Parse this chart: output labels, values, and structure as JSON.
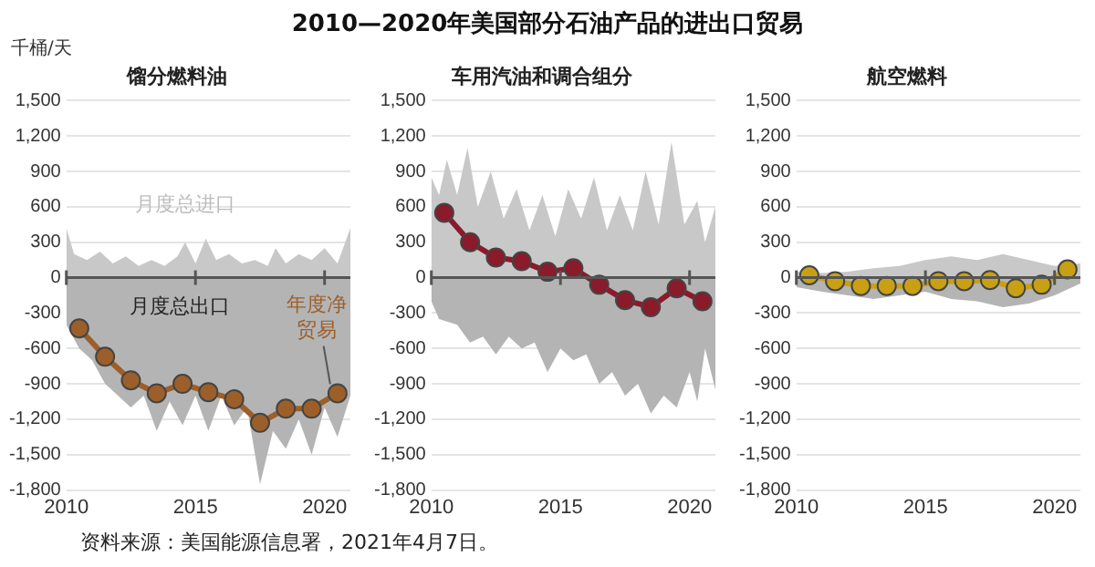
{
  "chart_data": [
    {
      "type": "other",
      "title": "2010—2020年美国部分石油产品的进出口贸易",
      "annotations": [
        "资料来源：美国能源信息署，2021年4月7日。"
      ]
    },
    {
      "type": "area",
      "title": "馏分燃料油",
      "ylabel": "千桶/天",
      "xlim": [
        2010,
        2021
      ],
      "xticks": [
        2010,
        2015,
        2020
      ],
      "ylim": [
        -1800,
        1500
      ],
      "yticks": [
        {
          "value": -1800,
          "label": "-1,800"
        },
        {
          "value": -1500,
          "label": "-1,500"
        },
        {
          "value": -1200,
          "label": "-1,200"
        },
        -900,
        -600,
        -300,
        0,
        300,
        600,
        900,
        {
          "value": 1200,
          "label": "1,200"
        },
        {
          "value": 1500,
          "label": "1,500"
        }
      ],
      "grid": "y",
      "legend": false,
      "ref_lines": [
        {
          "axis": "y",
          "value": 0,
          "color": "#555555"
        }
      ],
      "series": [
        {
          "name": "月度总进口",
          "color": "#c8c8c8",
          "x": [
            2010,
            2010.3,
            2010.8,
            2011.3,
            2011.8,
            2012.3,
            2012.8,
            2013.3,
            2013.8,
            2014.3,
            2014.6,
            2015,
            2015.4,
            2015.8,
            2016.3,
            2016.8,
            2017.3,
            2017.8,
            2018.1,
            2018.5,
            2019,
            2019.5,
            2020,
            2020.5,
            2021
          ],
          "values": [
            420,
            200,
            150,
            220,
            120,
            180,
            100,
            150,
            100,
            180,
            300,
            120,
            330,
            150,
            200,
            120,
            150,
            100,
            250,
            120,
            200,
            150,
            250,
            120,
            420
          ]
        },
        {
          "name": "月度总出口",
          "color": "#b4b4b4",
          "x": [
            2010,
            2010.5,
            2011,
            2011.5,
            2012,
            2012.5,
            2013,
            2013.5,
            2014,
            2014.5,
            2015,
            2015.5,
            2016,
            2016.5,
            2017,
            2017.5,
            2018,
            2018.5,
            2019,
            2019.5,
            2020,
            2020.5,
            2021
          ],
          "values": [
            -400,
            -600,
            -700,
            -900,
            -1000,
            -1100,
            -1000,
            -1300,
            -1050,
            -1250,
            -1000,
            -1300,
            -1000,
            -1250,
            -1100,
            -1750,
            -1300,
            -1450,
            -1200,
            -1500,
            -1100,
            -1350,
            -1000
          ]
        },
        {
          "name": "年度净贸易",
          "type": "line",
          "marker": "circle",
          "color": "#9c5f2a",
          "x": [
            2010.5,
            2011.5,
            2012.5,
            2013.5,
            2014.5,
            2015.5,
            2016.5,
            2017.5,
            2018.5,
            2019.5,
            2020.5
          ],
          "values": [
            -430,
            -670,
            -870,
            -980,
            -900,
            -970,
            -1030,
            -1230,
            -1110,
            -1110,
            -980
          ]
        }
      ]
    },
    {
      "type": "area",
      "title": "车用汽油和调合组分",
      "xlim": [
        2010,
        2021
      ],
      "xticks": [
        2010,
        2015,
        2020
      ],
      "ylim": [
        -1800,
        1500
      ],
      "yticks": [
        {
          "value": -1800,
          "label": "-1,800"
        },
        {
          "value": -1500,
          "label": "-1,500"
        },
        {
          "value": -1200,
          "label": "-1,200"
        },
        -900,
        -600,
        -300,
        0,
        300,
        600,
        900,
        {
          "value": 1200,
          "label": "1,200"
        },
        {
          "value": 1500,
          "label": "1,500"
        }
      ],
      "grid": "y",
      "legend": false,
      "ref_lines": [
        {
          "axis": "y",
          "value": 0,
          "color": "#555555"
        }
      ],
      "series": [
        {
          "color": "#c8c8c8",
          "x": [
            2010,
            2010.3,
            2010.6,
            2011,
            2011.4,
            2011.8,
            2012.3,
            2012.8,
            2013.3,
            2013.8,
            2014.3,
            2014.8,
            2015.3,
            2015.8,
            2016.3,
            2016.8,
            2017.3,
            2017.8,
            2018.3,
            2018.8,
            2019.3,
            2019.8,
            2020.3,
            2020.6,
            2021
          ],
          "values": [
            850,
            700,
            1000,
            700,
            1100,
            600,
            900,
            500,
            750,
            400,
            700,
            350,
            750,
            500,
            850,
            400,
            700,
            400,
            900,
            450,
            1150,
            450,
            650,
            300,
            600
          ]
        },
        {
          "color": "#b4b4b4",
          "x": [
            2010,
            2010.3,
            2011,
            2011.5,
            2012,
            2012.5,
            2013,
            2013.5,
            2014,
            2014.5,
            2015,
            2015.5,
            2016,
            2016.5,
            2017,
            2017.5,
            2018,
            2018.5,
            2019,
            2019.5,
            2020,
            2020.3,
            2020.6,
            2021
          ],
          "values": [
            -200,
            -350,
            -400,
            -550,
            -500,
            -650,
            -500,
            -600,
            -550,
            -800,
            -600,
            -700,
            -650,
            -900,
            -800,
            -1000,
            -900,
            -1150,
            -1000,
            -1100,
            -800,
            -1050,
            -600,
            -950
          ]
        },
        {
          "type": "line",
          "marker": "circle",
          "color": "#8b1a2b",
          "x": [
            2010.5,
            2011.5,
            2012.5,
            2013.5,
            2014.5,
            2015.5,
            2016.5,
            2017.5,
            2018.5,
            2019.5,
            2020.5
          ],
          "values": [
            550,
            300,
            170,
            140,
            50,
            80,
            -60,
            -190,
            -250,
            -90,
            -200
          ]
        }
      ]
    },
    {
      "type": "area",
      "title": "航空燃料",
      "xlim": [
        2010,
        2021
      ],
      "xticks": [
        2010,
        2015,
        2020
      ],
      "ylim": [
        -1800,
        1500
      ],
      "yticks": [
        {
          "value": -1800,
          "label": "-1,800"
        },
        {
          "value": -1500,
          "label": "-1,500"
        },
        {
          "value": -1200,
          "label": "-1,200"
        },
        -900,
        -600,
        -300,
        0,
        300,
        600,
        900,
        {
          "value": 1200,
          "label": "1,200"
        },
        {
          "value": 1500,
          "label": "1,500"
        }
      ],
      "grid": "y",
      "legend": false,
      "ref_lines": [
        {
          "axis": "y",
          "value": 0,
          "color": "#555555"
        }
      ],
      "series": [
        {
          "color": "#c8c8c8",
          "x": [
            2010,
            2011,
            2012,
            2013,
            2014,
            2015,
            2016,
            2017,
            2018,
            2019,
            2020,
            2021
          ],
          "values": [
            50,
            40,
            50,
            80,
            100,
            150,
            180,
            150,
            200,
            150,
            100,
            120
          ]
        },
        {
          "color": "#b4b4b4",
          "x": [
            2010,
            2011,
            2012,
            2013,
            2014,
            2015,
            2016,
            2017,
            2018,
            2019,
            2020,
            2021
          ],
          "values": [
            -80,
            -120,
            -150,
            -180,
            -150,
            -120,
            -180,
            -200,
            -250,
            -220,
            -150,
            -50
          ]
        },
        {
          "type": "line",
          "marker": "circle",
          "color": "#c9a013",
          "x": [
            2010.5,
            2011.5,
            2012.5,
            2013.5,
            2014.5,
            2015.5,
            2016.5,
            2017.5,
            2018.5,
            2019.5,
            2020.5
          ],
          "values": [
            20,
            -30,
            -70,
            -70,
            -70,
            -30,
            -30,
            -20,
            -90,
            -60,
            70
          ]
        }
      ]
    }
  ]
}
